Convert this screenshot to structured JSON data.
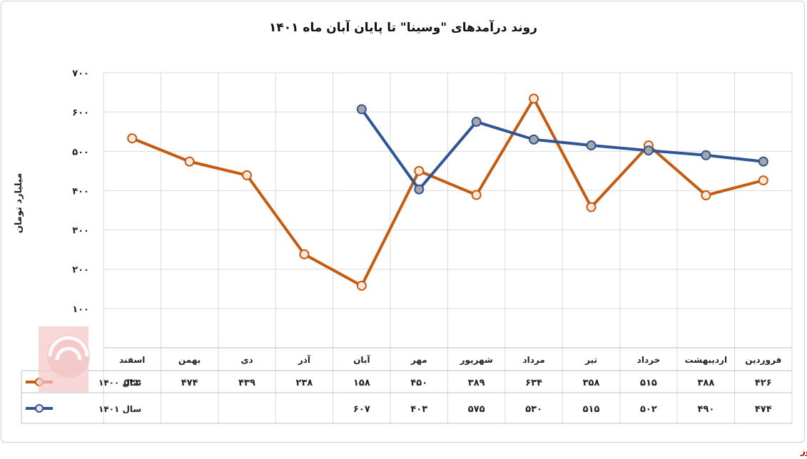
{
  "chart_data": {
    "type": "line",
    "title": "روند درآمدهای \"وسینا\" تا پایان آبان ماه ۱۴۰۱",
    "ylabel": "میلیارد تومان",
    "ylim": [
      0,
      700
    ],
    "yticks": [
      0,
      100,
      200,
      300,
      400,
      500,
      600,
      700
    ],
    "ytick_labels": [
      "۰",
      "۱۰۰",
      "۲۰۰",
      "۳۰۰",
      "۴۰۰",
      "۵۰۰",
      "۶۰۰",
      "۷۰۰"
    ],
    "grid": true,
    "legend": "data-table-left",
    "categories": [
      "فروردین",
      "اردیبهشت",
      "خرداد",
      "تیر",
      "مرداد",
      "شهریور",
      "مهر",
      "آبان",
      "آذر",
      "دی",
      "بهمن",
      "اسفند"
    ],
    "series": [
      {
        "name": "سال ۱۴۰۰",
        "color": "#c55a11",
        "values": [
          426,
          388,
          515,
          358,
          634,
          389,
          450,
          158,
          238,
          439,
          474,
          533
        ],
        "labels": [
          "۴۲۶",
          "۳۸۸",
          "۵۱۵",
          "۳۵۸",
          "۶۳۴",
          "۳۸۹",
          "۴۵۰",
          "۱۵۸",
          "۲۳۸",
          "۴۳۹",
          "۴۷۴",
          "۵۳۳"
        ]
      },
      {
        "name": "سال ۱۴۰۱",
        "color": "#2e5597",
        "values": [
          474,
          490,
          502,
          515,
          530,
          575,
          403,
          607,
          null,
          null,
          null,
          null
        ],
        "labels": [
          "۴۷۴",
          "۴۹۰",
          "۵۰۲",
          "۵۱۵",
          "۵۳۰",
          "۵۷۵",
          "۴۰۳",
          "۶۰۷",
          "",
          "",
          "",
          ""
        ]
      }
    ]
  },
  "source_label": "بورس نیوز"
}
